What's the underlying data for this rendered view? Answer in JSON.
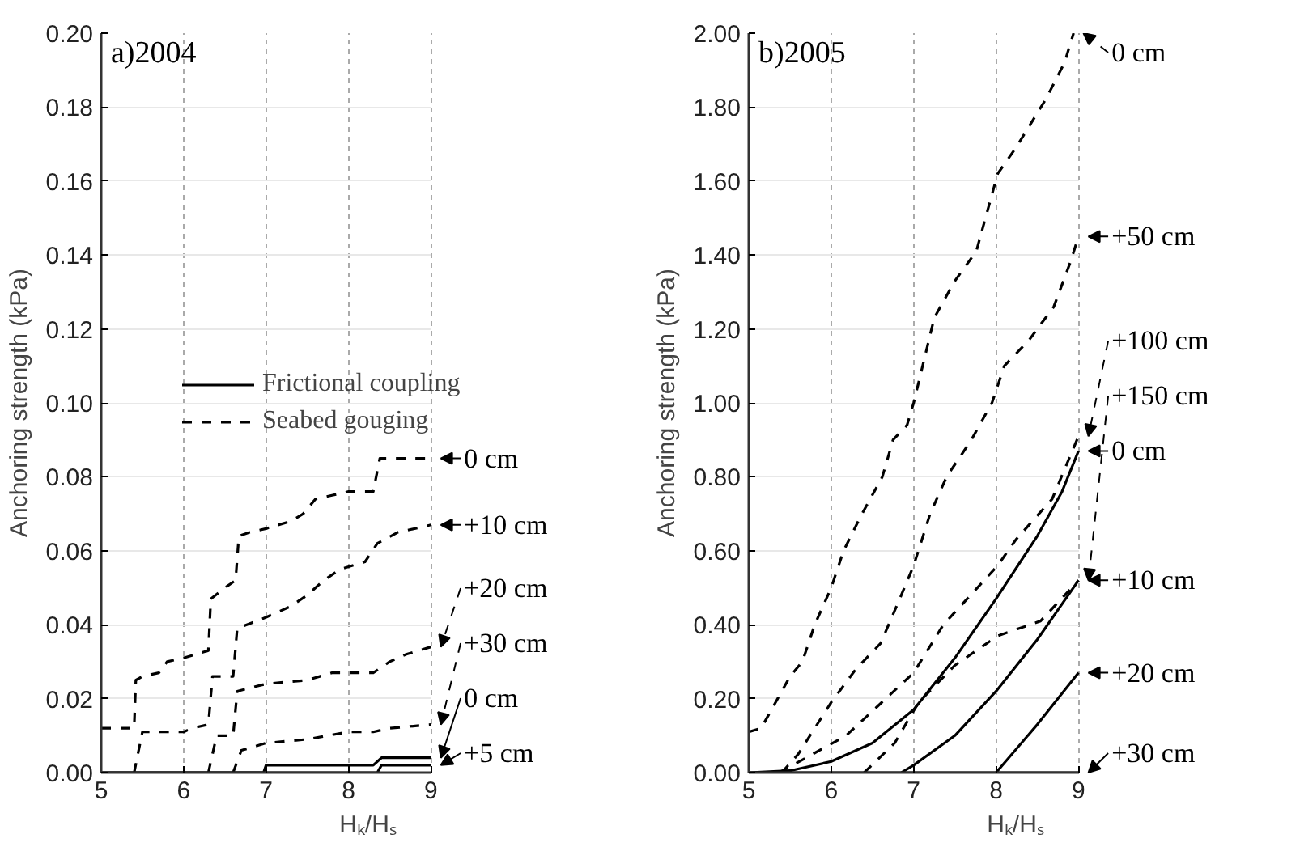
{
  "chart_data": [
    {
      "type": "line",
      "title": "a)2004",
      "xlabel": "Hₖ/Hₛ",
      "ylabel": "Anchoring strength (kPa)",
      "xlim": [
        5,
        9
      ],
      "ylim": [
        0,
        0.2
      ],
      "xticks": [
        5,
        6,
        7,
        8,
        9
      ],
      "yticks": [
        {
          "value": 0,
          "label": "0.00"
        },
        {
          "value": 0.02,
          "label": "0.02"
        },
        {
          "value": 0.04,
          "label": "0.04"
        },
        {
          "value": 0.06,
          "label": "0.06"
        },
        {
          "value": 0.08,
          "label": "0.08"
        },
        {
          "value": 0.1,
          "label": "0.10"
        },
        {
          "value": 0.12,
          "label": "0.12"
        },
        {
          "value": 0.14,
          "label": "0.14"
        },
        {
          "value": 0.16,
          "label": "0.16"
        },
        {
          "value": 0.18,
          "label": "0.18"
        },
        {
          "value": 0.2,
          "label": "0.20"
        }
      ],
      "grid": true,
      "legend": "right",
      "annotations": [
        "Frictional coupling",
        "Seabed gouging"
      ],
      "series": [
        {
          "name": "0 cm",
          "color": "#000000",
          "line_style": "dashed",
          "x": [
            5,
            5.4,
            5.42,
            5.5,
            5.7,
            5.8,
            6.0,
            6.3,
            6.33,
            6.5,
            6.63,
            6.67,
            6.8,
            7.0,
            7.3,
            7.45,
            7.6,
            7.8,
            8.0,
            8.3,
            8.38,
            9
          ],
          "values": [
            0.012,
            0.012,
            0.025,
            0.026,
            0.027,
            0.03,
            0.031,
            0.033,
            0.047,
            0.05,
            0.052,
            0.064,
            0.065,
            0.066,
            0.068,
            0.07,
            0.074,
            0.075,
            0.076,
            0.076,
            0.085,
            0.085
          ]
        },
        {
          "name": "+10 cm",
          "color": "#000000",
          "line_style": "dashed",
          "x": [
            5.4,
            5.5,
            6.0,
            6.1,
            6.3,
            6.35,
            6.6,
            6.65,
            7.0,
            7.3,
            7.5,
            7.7,
            7.9,
            8.2,
            8.35,
            8.6,
            9
          ],
          "values": [
            0,
            0.011,
            0.011,
            0.012,
            0.013,
            0.026,
            0.026,
            0.039,
            0.042,
            0.045,
            0.048,
            0.052,
            0.055,
            0.057,
            0.062,
            0.065,
            0.067
          ]
        },
        {
          "name": "+20 cm",
          "color": "#000000",
          "line_style": "dashed",
          "x": [
            6.3,
            6.4,
            6.6,
            6.65,
            7.0,
            7.5,
            7.8,
            8.3,
            8.5,
            8.7,
            9
          ],
          "values": [
            0,
            0.01,
            0.01,
            0.022,
            0.024,
            0.025,
            0.027,
            0.027,
            0.03,
            0.032,
            0.034
          ]
        },
        {
          "name": "+30 cm",
          "color": "#000000",
          "line_style": "dashed",
          "x": [
            6.6,
            6.7,
            7.0,
            7.5,
            8.0,
            8.3,
            8.5,
            9
          ],
          "values": [
            0,
            0.006,
            0.008,
            0.009,
            0.011,
            0.011,
            0.012,
            0.013
          ]
        },
        {
          "name": "0 cm",
          "color": "#000000",
          "line_style": "solid",
          "x": [
            5,
            6.97,
            7.0,
            8.3,
            8.4,
            9
          ],
          "values": [
            0,
            0,
            0.002,
            0.002,
            0.004,
            0.004
          ]
        },
        {
          "name": "+5 cm",
          "color": "#000000",
          "line_style": "solid",
          "x": [
            5,
            8.35,
            8.4,
            9
          ],
          "values": [
            0,
            0,
            0.002,
            0.002
          ]
        }
      ]
    },
    {
      "type": "line",
      "title": "b)2005",
      "xlabel": "Hₖ/Hₛ",
      "ylabel": "Anchoring strength (kPa)",
      "xlim": [
        5,
        9
      ],
      "ylim": [
        0,
        2
      ],
      "xticks": [
        5,
        6,
        7,
        8,
        9
      ],
      "yticks": [
        {
          "value": 0,
          "label": "0.00"
        },
        {
          "value": 0.2,
          "label": "0.20"
        },
        {
          "value": 0.4,
          "label": "0.40"
        },
        {
          "value": 0.6,
          "label": "0.60"
        },
        {
          "value": 0.8,
          "label": "0.80"
        },
        {
          "value": 1.0,
          "label": "1.00"
        },
        {
          "value": 1.2,
          "label": "1.20"
        },
        {
          "value": 1.4,
          "label": "1.40"
        },
        {
          "value": 1.6,
          "label": "1.60"
        },
        {
          "value": 1.8,
          "label": "1.80"
        },
        {
          "value": 2.0,
          "label": "2.00"
        }
      ],
      "grid": true,
      "legend": "right",
      "series": [
        {
          "name": "0 cm",
          "color": "#000000",
          "line_style": "dashed",
          "x": [
            5,
            5.15,
            5.3,
            5.5,
            5.65,
            5.8,
            6.0,
            6.15,
            6.35,
            6.62,
            6.75,
            6.92,
            7.0,
            7.25,
            7.5,
            7.76,
            8.02,
            8.24,
            8.6,
            8.83,
            8.94
          ],
          "values": [
            0.11,
            0.12,
            0.18,
            0.26,
            0.3,
            0.4,
            0.5,
            0.6,
            0.69,
            0.8,
            0.9,
            0.94,
            1.0,
            1.23,
            1.33,
            1.41,
            1.62,
            1.69,
            1.82,
            1.92,
            2.0
          ]
        },
        {
          "name": "+50 cm",
          "color": "#000000",
          "line_style": "dashed",
          "x": [
            5.4,
            5.6,
            6.0,
            6.3,
            6.6,
            6.85,
            7.0,
            7.2,
            7.4,
            7.7,
            7.95,
            8.1,
            8.4,
            8.7,
            8.9,
            9.0
          ],
          "values": [
            0,
            0.05,
            0.19,
            0.28,
            0.35,
            0.48,
            0.56,
            0.7,
            0.8,
            0.9,
            1.0,
            1.1,
            1.17,
            1.26,
            1.38,
            1.45
          ]
        },
        {
          "name": "+100 cm",
          "color": "#000000",
          "line_style": "dashed",
          "x": [
            5.37,
            6.18,
            7.0,
            7.36,
            7.65,
            8.02,
            8.24,
            8.68,
            9.0
          ],
          "values": [
            0,
            0.1,
            0.27,
            0.4,
            0.47,
            0.56,
            0.63,
            0.74,
            0.91
          ]
        },
        {
          "name": "+150 cm",
          "color": "#000000",
          "line_style": "dashed",
          "x": [
            6.4,
            6.77,
            7.06,
            7.5,
            8.02,
            8.54,
            9.0
          ],
          "values": [
            0,
            0.08,
            0.19,
            0.29,
            0.37,
            0.41,
            0.52
          ]
        },
        {
          "name": "0 cm",
          "color": "#000000",
          "line_style": "solid",
          "x": [
            5,
            5.5,
            6.0,
            6.5,
            7.0,
            7.5,
            8.0,
            8.5,
            8.8,
            9.0
          ],
          "values": [
            0,
            0.005,
            0.03,
            0.08,
            0.17,
            0.31,
            0.47,
            0.64,
            0.76,
            0.87
          ]
        },
        {
          "name": "+10 cm",
          "color": "#000000",
          "line_style": "solid",
          "x": [
            6.85,
            7.0,
            7.5,
            8.0,
            8.5,
            9.0
          ],
          "values": [
            0,
            0.02,
            0.1,
            0.22,
            0.36,
            0.52
          ]
        },
        {
          "name": "+20 cm",
          "color": "#000000",
          "line_style": "solid",
          "x": [
            8.0,
            8.5,
            9.0
          ],
          "values": [
            0,
            0.13,
            0.27
          ]
        },
        {
          "name": "+30 cm",
          "color": "#000000",
          "line_style": "solid",
          "x": [
            5,
            9
          ],
          "values": [
            0,
            0
          ]
        }
      ]
    }
  ]
}
